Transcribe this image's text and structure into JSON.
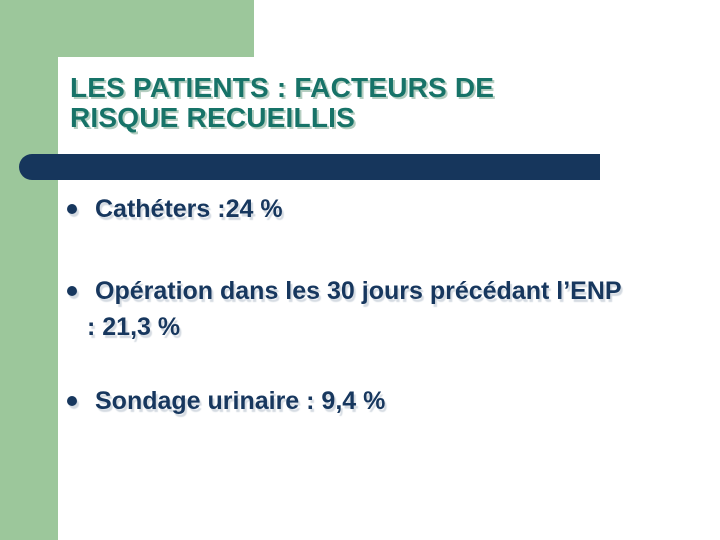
{
  "slide": {
    "title": {
      "line1": "LES PATIENTS : FACTEURS DE",
      "line2": "RISQUE RECUEILLIS"
    },
    "bullets": [
      {
        "line1": "Cathéters :24 %"
      },
      {
        "line1": "Opération dans les 30 jours précédant l’ENP",
        "line2": ": 21,3 %"
      },
      {
        "line1": "Sondage urinaire : 9,4 %"
      }
    ],
    "bullet_icon": "filled-circle-bullet",
    "colors": {
      "accent_green": "#9CC79B",
      "bar_navy": "#16365C",
      "title_teal": "#177368",
      "text_navy": "#17375E",
      "panel_white": "#FFFFFF"
    }
  }
}
